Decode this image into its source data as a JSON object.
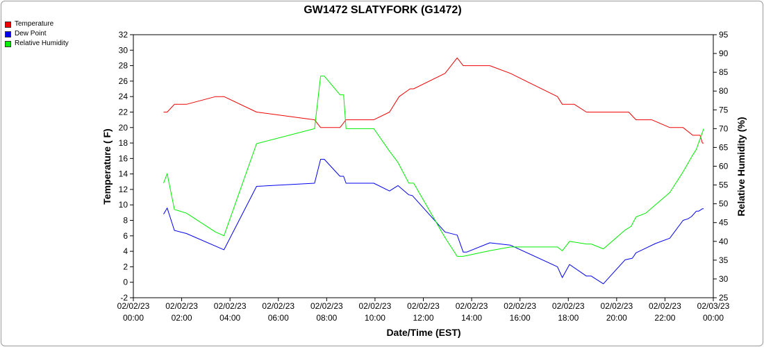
{
  "chart_data": {
    "type": "line",
    "title": "GW1472 SLATYFORK (G1472)",
    "xlabel": "Date/Time (EST)",
    "ylabel": "Temperature ( F)",
    "y2label": "Relative Humidity (%)",
    "xlim": [
      0,
      24
    ],
    "ylim": [
      -2,
      32
    ],
    "y2lim": [
      25,
      95
    ],
    "x_ticks": [
      {
        "value": 0,
        "date": "02/02/23",
        "time": "00:00"
      },
      {
        "value": 2,
        "date": "02/02/23",
        "time": "02:00"
      },
      {
        "value": 4,
        "date": "02/02/23",
        "time": "04:00"
      },
      {
        "value": 6,
        "date": "02/02/23",
        "time": "06:00"
      },
      {
        "value": 8,
        "date": "02/02/23",
        "time": "08:00"
      },
      {
        "value": 10,
        "date": "02/02/23",
        "time": "10:00"
      },
      {
        "value": 12,
        "date": "02/02/23",
        "time": "12:00"
      },
      {
        "value": 14,
        "date": "02/02/23",
        "time": "14:00"
      },
      {
        "value": 16,
        "date": "02/02/23",
        "time": "16:00"
      },
      {
        "value": 18,
        "date": "02/02/23",
        "time": "18:00"
      },
      {
        "value": 20,
        "date": "02/02/23",
        "time": "20:00"
      },
      {
        "value": 22,
        "date": "02/02/23",
        "time": "22:00"
      },
      {
        "value": 24,
        "date": "02/03/23",
        "time": "00:00"
      }
    ],
    "y_ticks": [
      -2,
      0,
      2,
      4,
      6,
      8,
      10,
      12,
      14,
      16,
      18,
      20,
      22,
      24,
      26,
      28,
      30,
      32
    ],
    "y2_ticks": [
      25,
      30,
      35,
      40,
      45,
      50,
      55,
      60,
      65,
      70,
      75,
      80,
      85,
      90,
      95
    ],
    "grid": false,
    "legend_position": "top-left",
    "series": [
      {
        "name": "Temperature",
        "color": "#ee0000",
        "axis": "left",
        "x": [
          1.25,
          1.4,
          1.7,
          2.2,
          3.4,
          3.75,
          5.1,
          7.5,
          7.75,
          8.55,
          8.8,
          9.95,
          10.6,
          11.0,
          11.45,
          11.6,
          12.9,
          13.4,
          13.65,
          14.75,
          15.6,
          17.55,
          17.75,
          18.25,
          18.75,
          20.5,
          20.8,
          21.45,
          22.2,
          22.75,
          23.15,
          23.45,
          23.55,
          23.6
        ],
        "y": [
          22,
          22,
          23,
          23,
          24,
          24,
          22,
          21,
          20,
          20,
          21,
          21,
          22,
          24,
          25,
          25,
          27,
          29,
          28,
          28,
          27,
          24,
          23,
          23,
          22,
          22,
          21,
          21,
          20,
          20,
          19,
          19,
          18,
          18
        ]
      },
      {
        "name": "Dew Point",
        "color": "#0000ee",
        "axis": "left",
        "x": [
          1.25,
          1.4,
          1.7,
          2.2,
          3.75,
          5.1,
          7.5,
          7.75,
          7.9,
          8.55,
          8.7,
          8.8,
          9.95,
          10.6,
          10.95,
          11.4,
          11.55,
          12.9,
          13.4,
          13.65,
          13.8,
          14.75,
          15.6,
          17.55,
          17.75,
          18.05,
          18.75,
          18.95,
          19.45,
          20.35,
          20.65,
          20.8,
          21.2,
          21.6,
          22.2,
          22.75,
          22.95,
          23.1,
          23.3,
          23.4,
          23.55,
          23.6
        ],
        "y": [
          8.8,
          9.6,
          6.7,
          6.3,
          4.2,
          12.4,
          12.8,
          15.9,
          15.9,
          13.7,
          13.7,
          12.8,
          12.8,
          11.8,
          12.5,
          11.3,
          11.2,
          6.5,
          6.1,
          3.9,
          3.9,
          5.1,
          4.8,
          2.0,
          0.6,
          2.3,
          0.8,
          0.8,
          -0.2,
          2.9,
          3.1,
          3.8,
          4.4,
          5.0,
          5.7,
          8.0,
          8.2,
          8.5,
          9.2,
          9.2,
          9.5,
          9.5
        ]
      },
      {
        "name": "Relative Humidity",
        "color": "#00ee00",
        "axis": "right",
        "x": [
          1.25,
          1.4,
          1.7,
          2.2,
          3.4,
          3.75,
          5.1,
          7.5,
          7.75,
          7.9,
          8.55,
          8.7,
          8.8,
          9.95,
          10.6,
          10.95,
          11.4,
          11.6,
          12.9,
          13.4,
          13.65,
          14.75,
          15.6,
          17.55,
          17.75,
          18.05,
          18.75,
          18.95,
          19.45,
          20.35,
          20.6,
          20.8,
          21.2,
          22.2,
          22.75,
          23.15,
          23.3,
          23.55,
          23.6
        ],
        "y": [
          55.5,
          58.0,
          48.5,
          47.5,
          42.5,
          41.5,
          66.0,
          70.0,
          84.0,
          84.0,
          79.0,
          79.0,
          70.0,
          70.0,
          64.0,
          61.0,
          55.5,
          55.5,
          41.0,
          36.0,
          36.0,
          37.5,
          38.5,
          38.5,
          37.5,
          40.0,
          39.3,
          39.3,
          38.0,
          43.0,
          44.0,
          46.5,
          47.5,
          53.0,
          58.5,
          63.0,
          64.5,
          69.0,
          70.0
        ]
      }
    ]
  }
}
